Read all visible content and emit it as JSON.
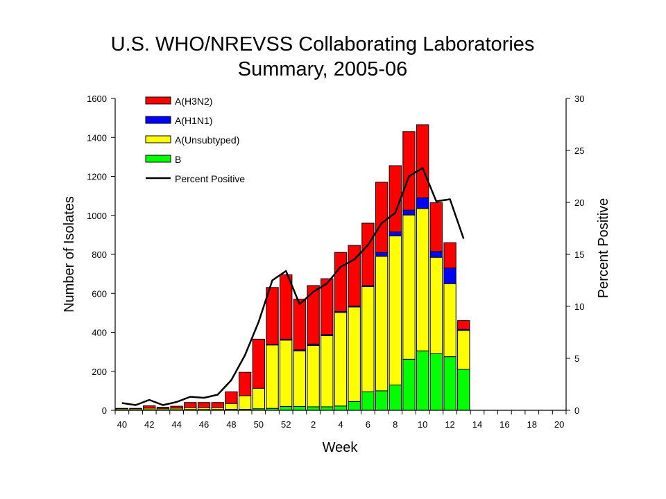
{
  "chart_data": {
    "type": "bar",
    "title_line1": "U.S. WHO/NREVSS Collaborating Laboratories",
    "title_line2": "Summary, 2005-06",
    "xlabel": "Week",
    "ylabel_left": "Number of Isolates",
    "ylabel_right": "Percent Positive",
    "ylim_left": [
      0,
      1600
    ],
    "ylim_right": [
      0,
      30
    ],
    "yticks_left": [
      0,
      200,
      400,
      600,
      800,
      1000,
      1200,
      1400,
      1600
    ],
    "yticks_right": [
      0,
      5,
      10,
      15,
      20,
      25,
      30
    ],
    "x_tick_labels": [
      "40",
      "42",
      "44",
      "46",
      "48",
      "50",
      "52",
      "2",
      "4",
      "6",
      "8",
      "10",
      "12",
      "14",
      "16",
      "18",
      "20"
    ],
    "weeks": [
      "40",
      "41",
      "42",
      "43",
      "44",
      "45",
      "46",
      "47",
      "48",
      "49",
      "50",
      "51",
      "52",
      "1",
      "2",
      "3",
      "4",
      "5",
      "6",
      "7",
      "8",
      "9",
      "10",
      "11",
      "12",
      "13",
      "14",
      "15",
      "16",
      "17",
      "18",
      "19",
      "20"
    ],
    "legend_position": "top-left",
    "series": [
      {
        "name": "B",
        "color": "#00ff00",
        "values": [
          2,
          2,
          3,
          3,
          3,
          4,
          4,
          4,
          5,
          5,
          8,
          10,
          20,
          20,
          18,
          18,
          22,
          45,
          95,
          100,
          130,
          262,
          305,
          290,
          275,
          210,
          0,
          0,
          0,
          0,
          0,
          0,
          0
        ]
      },
      {
        "name": "A(Unsubtyped)",
        "color": "#ffff00",
        "values": [
          6,
          6,
          8,
          7,
          8,
          10,
          10,
          10,
          30,
          70,
          105,
          325,
          340,
          285,
          315,
          365,
          480,
          485,
          540,
          690,
          765,
          740,
          730,
          495,
          375,
          200,
          0,
          0,
          0,
          0,
          0,
          0,
          0
        ]
      },
      {
        "name": "A(H1N1)",
        "color": "#0000ff",
        "values": [
          0,
          0,
          0,
          0,
          0,
          0,
          0,
          0,
          0,
          0,
          0,
          3,
          5,
          5,
          7,
          5,
          5,
          5,
          5,
          20,
          20,
          25,
          55,
          30,
          80,
          5,
          0,
          0,
          0,
          0,
          0,
          0,
          0
        ]
      },
      {
        "name": "A(H3N2)",
        "color": "#ff0000",
        "values": [
          2,
          2,
          12,
          6,
          10,
          26,
          26,
          26,
          60,
          120,
          252,
          292,
          330,
          260,
          300,
          287,
          303,
          311,
          320,
          360,
          340,
          403,
          375,
          250,
          130,
          45,
          0,
          0,
          0,
          0,
          0,
          0,
          0
        ]
      }
    ],
    "line_series": {
      "name": "Percent Positive",
      "color": "#000000",
      "axis": "right",
      "values": [
        0.7,
        0.5,
        1.0,
        0.5,
        0.8,
        1.3,
        1.2,
        1.5,
        2.9,
        5.3,
        8.5,
        12.5,
        13.4,
        10.2,
        11.4,
        12.2,
        13.8,
        14.5,
        15.9,
        18.0,
        19.0,
        22.5,
        23.3,
        20.1,
        20.3,
        16.5,
        null,
        null,
        null,
        null,
        null,
        null,
        null
      ]
    }
  }
}
